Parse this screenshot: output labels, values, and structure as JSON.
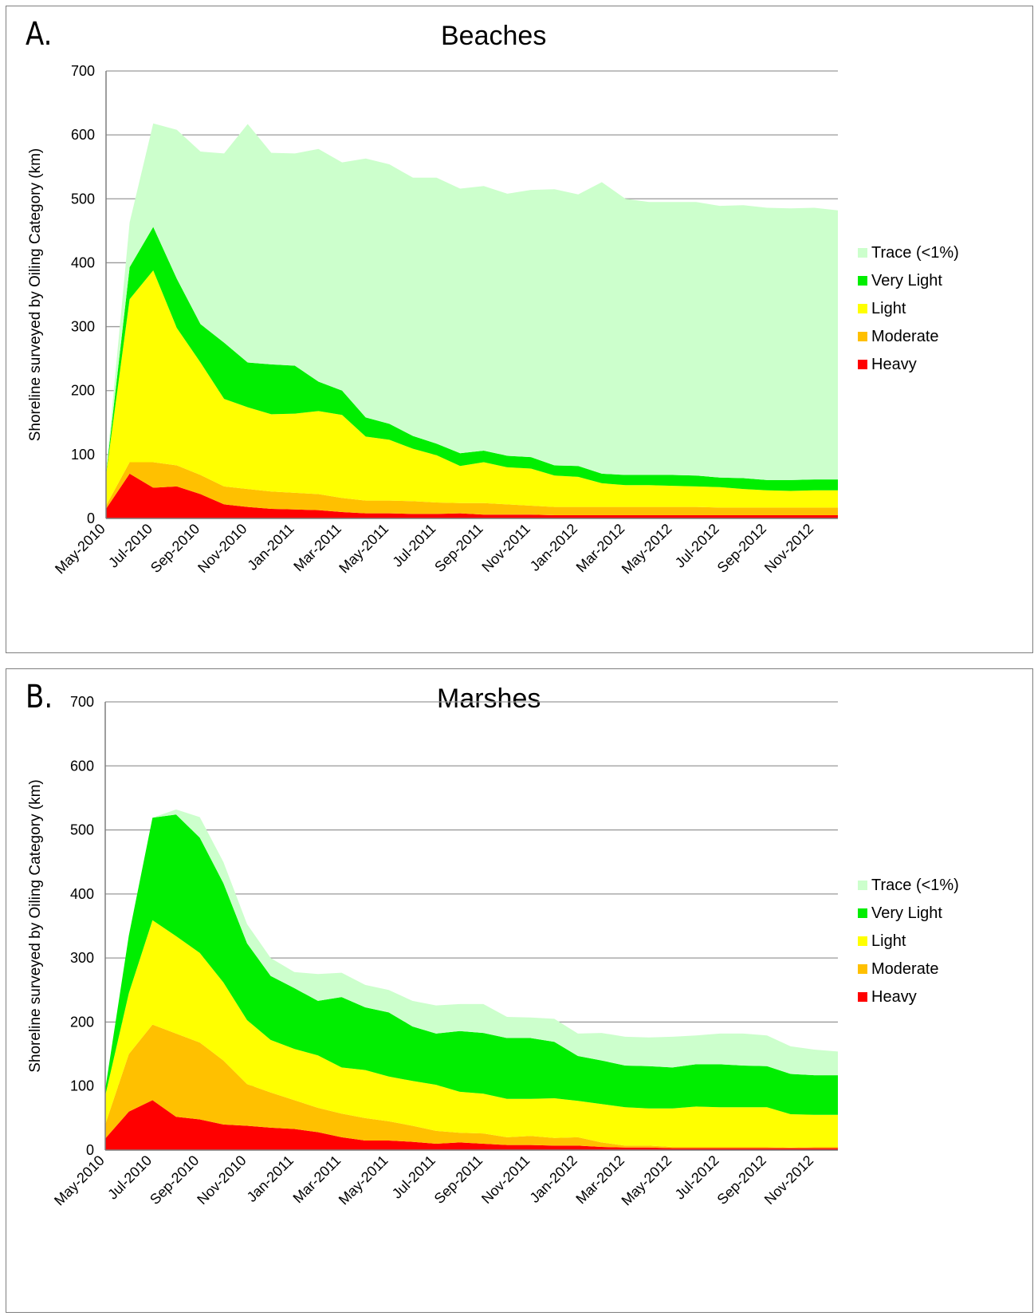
{
  "panels": [
    {
      "letter": "A.",
      "chart_data": {
        "type": "area",
        "title": "Beaches",
        "ylabel": "Shoreline surveyed by Oiling Category (km)",
        "xlabel": "",
        "ylim": [
          0,
          700
        ],
        "yticks": [
          0,
          100,
          200,
          300,
          400,
          500,
          600,
          700
        ],
        "grid": true,
        "stacked": true,
        "legend_position": "right",
        "x": [
          "May-2010",
          "Jun-2010",
          "Jul-2010",
          "Aug-2010",
          "Sep-2010",
          "Oct-2010",
          "Nov-2010",
          "Dec-2010",
          "Jan-2011",
          "Feb-2011",
          "Mar-2011",
          "Apr-2011",
          "May-2011",
          "Jun-2011",
          "Jul-2011",
          "Aug-2011",
          "Sep-2011",
          "Oct-2011",
          "Nov-2011",
          "Dec-2011",
          "Jan-2012",
          "Feb-2012",
          "Mar-2012",
          "Apr-2012",
          "May-2012",
          "Jun-2012",
          "Jul-2012",
          "Aug-2012",
          "Sep-2012",
          "Oct-2012",
          "Nov-2012",
          "Dec-2012"
        ],
        "xtick_labels": [
          "May-2010",
          "Jul-2010",
          "Sep-2010",
          "Nov-2010",
          "Jan-2011",
          "Mar-2011",
          "May-2011",
          "Jul-2011",
          "Sep-2011",
          "Nov-2011",
          "Jan-2012",
          "Mar-2012",
          "May-2012",
          "Jul-2012",
          "Sep-2012",
          "Nov-2012"
        ],
        "series": [
          {
            "name": "Heavy",
            "color": "#ff0000",
            "values": [
              15,
              70,
              48,
              50,
              38,
              22,
              18,
              15,
              14,
              13,
              10,
              8,
              8,
              7,
              7,
              8,
              6,
              6,
              6,
              5,
              5,
              5,
              5,
              5,
              5,
              5,
              5,
              5,
              5,
              5,
              5,
              5
            ]
          },
          {
            "name": "Moderate",
            "color": "#ffc000",
            "values": [
              5,
              18,
              40,
              33,
              30,
              28,
              28,
              27,
              26,
              25,
              22,
              20,
              20,
              20,
              18,
              16,
              18,
              16,
              14,
              13,
              13,
              13,
              13,
              13,
              13,
              13,
              12,
              12,
              12,
              12,
              12,
              12
            ]
          },
          {
            "name": "Light",
            "color": "#ffff00",
            "values": [
              48,
              255,
              300,
              215,
              176,
              137,
              128,
              121,
              124,
              130,
              130,
              100,
              95,
              82,
              74,
              58,
              64,
              58,
              58,
              49,
              47,
              37,
              34,
              34,
              33,
              32,
              32,
              29,
              27,
              26,
              27,
              27
            ]
          },
          {
            "name": "Very Light",
            "color": "#00ee00",
            "values": [
              2,
              50,
              68,
              77,
              60,
              88,
              70,
              78,
              75,
              46,
              38,
              30,
              25,
              20,
              18,
              20,
              18,
              18,
              18,
              16,
              17,
              15,
              16,
              16,
              17,
              17,
              15,
              17,
              16,
              17,
              17,
              17
            ]
          },
          {
            "name": "Trace (<1%)",
            "color": "#ccffcc",
            "values": [
              2,
              70,
              162,
              233,
              270,
              296,
              373,
              331,
              332,
              364,
              357,
              405,
              406,
              404,
              416,
              414,
              414,
              410,
              418,
              432,
              425,
              456,
              432,
              427,
              427,
              428,
              425,
              427,
              426,
              425,
              425,
              421
            ]
          }
        ]
      }
    },
    {
      "letter": "B.",
      "chart_data": {
        "type": "area",
        "title": "Marshes",
        "ylabel": "Shoreline surveyed by Oiling Category (km)",
        "xlabel": "",
        "ylim": [
          0,
          700
        ],
        "yticks": [
          0,
          100,
          200,
          300,
          400,
          500,
          600,
          700
        ],
        "grid": true,
        "stacked": true,
        "legend_position": "right",
        "x": [
          "May-2010",
          "Jun-2010",
          "Jul-2010",
          "Aug-2010",
          "Sep-2010",
          "Oct-2010",
          "Nov-2010",
          "Dec-2010",
          "Jan-2011",
          "Feb-2011",
          "Mar-2011",
          "Apr-2011",
          "May-2011",
          "Jun-2011",
          "Jul-2011",
          "Aug-2011",
          "Sep-2011",
          "Oct-2011",
          "Nov-2011",
          "Dec-2011",
          "Jan-2012",
          "Feb-2012",
          "Mar-2012",
          "Apr-2012",
          "May-2012",
          "Jun-2012",
          "Jul-2012",
          "Aug-2012",
          "Sep-2012",
          "Oct-2012",
          "Nov-2012",
          "Dec-2012"
        ],
        "xtick_labels": [
          "May-2010",
          "Jul-2010",
          "Sep-2010",
          "Nov-2010",
          "Jan-2011",
          "Mar-2011",
          "May-2011",
          "Jul-2011",
          "Sep-2011",
          "Nov-2011",
          "Jan-2012",
          "Mar-2012",
          "May-2012",
          "Jul-2012",
          "Sep-2012",
          "Nov-2012"
        ],
        "series": [
          {
            "name": "Heavy",
            "color": "#ff0000",
            "values": [
              18,
              60,
              78,
              52,
              48,
              40,
              38,
              35,
              33,
              28,
              20,
              15,
              15,
              13,
              10,
              12,
              10,
              8,
              8,
              7,
              7,
              5,
              4,
              4,
              3,
              3,
              3,
              3,
              3,
              3,
              3,
              3
            ]
          },
          {
            "name": "Moderate",
            "color": "#ffc000",
            "values": [
              22,
              90,
              118,
              130,
              120,
              100,
              65,
              55,
              45,
              38,
              37,
              35,
              30,
              25,
              20,
              15,
              16,
              12,
              14,
              12,
              13,
              7,
              3,
              3,
              2,
              2,
              2,
              2,
              2,
              1,
              2,
              2
            ]
          },
          {
            "name": "Light",
            "color": "#ffff00",
            "values": [
              45,
              95,
              163,
              152,
              140,
              122,
              100,
              82,
              80,
              82,
              72,
              75,
              70,
              70,
              72,
              64,
              62,
              60,
              58,
              62,
              57,
              60,
              60,
              58,
              60,
              63,
              62,
              62,
              62,
              52,
              50,
              50
            ]
          },
          {
            "name": "Very Light",
            "color": "#00ee00",
            "values": [
              10,
              90,
              160,
              190,
              180,
              155,
              120,
              100,
              95,
              85,
              110,
              98,
              100,
              85,
              80,
              95,
              95,
              95,
              95,
              88,
              70,
              68,
              65,
              66,
              64,
              66,
              67,
              65,
              64,
              63,
              62,
              62
            ]
          },
          {
            "name": "Trace (<1%)",
            "color": "#ccffcc",
            "values": [
              0,
              0,
              0,
              8,
              32,
              33,
              30,
              28,
              25,
              42,
              38,
              35,
              35,
              40,
              44,
              42,
              45,
              33,
              32,
              36,
              35,
              43,
              45,
              45,
              48,
              45,
              48,
              50,
              48,
              43,
              40,
              37
            ]
          }
        ]
      }
    }
  ]
}
